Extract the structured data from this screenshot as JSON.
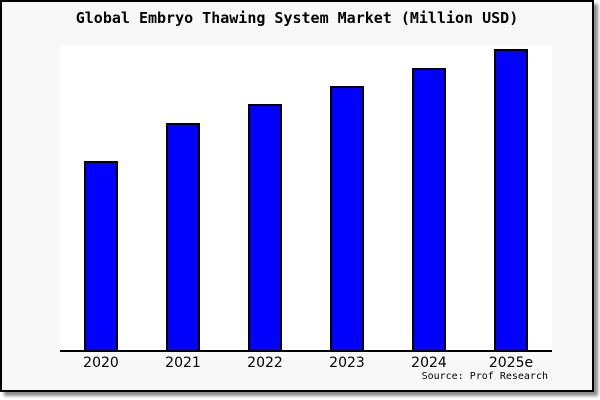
{
  "title": "Global Embryo Thawing System Market (Million USD)",
  "source": "Source: Prof Research",
  "colors": {
    "figure_background": "#f8f8f8",
    "plot_background": "#ffffff",
    "frame_border": "#000000",
    "axis_line": "#000000",
    "shadow": "#8d8d8d"
  },
  "chart_data": {
    "type": "bar",
    "title": "Global Embryo Thawing System Market (Million USD)",
    "categories": [
      "2020",
      "2021",
      "2022",
      "2023",
      "2024",
      "2025e"
    ],
    "values": [
      62.8,
      75.4,
      81.7,
      87.7,
      93.7,
      100
    ],
    "values_unit": "relative index (y-axis shows no tick labels or values)",
    "xlabel": "",
    "ylabel": "",
    "ylim": [
      0,
      101
    ],
    "grid": false,
    "legend": false,
    "y_axis_labels_visible": false,
    "bar_color": "#0000ff",
    "bar_edge_color": "#000000",
    "annotation": "Source: Prof Research"
  }
}
